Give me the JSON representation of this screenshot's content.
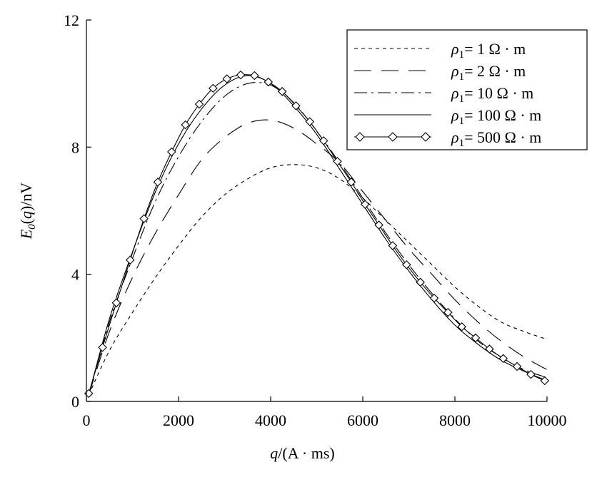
{
  "chart_data": {
    "type": "line",
    "title": "",
    "xlabel": "q/(A · ms)",
    "ylabel": "E0(q)/nV",
    "xlim": [
      0,
      10000
    ],
    "ylim": [
      0,
      12
    ],
    "xticks": [
      0,
      2000,
      4000,
      6000,
      8000,
      10000
    ],
    "yticks": [
      0,
      4,
      8,
      12
    ],
    "legend_position": "top-right",
    "grid": false,
    "series": [
      {
        "name": "ρ1= 1 Ω · m",
        "style": "short-dash",
        "marker": "none",
        "x": [
          50,
          500,
          1000,
          1500,
          2000,
          2500,
          3000,
          3500,
          4000,
          4500,
          5000,
          5500,
          6000,
          6500,
          7000,
          7500,
          8000,
          8500,
          9000,
          9500,
          10000
        ],
        "y": [
          0.2,
          1.6,
          2.8,
          3.9,
          4.9,
          5.8,
          6.5,
          7.0,
          7.35,
          7.45,
          7.35,
          7.0,
          6.4,
          5.7,
          5.0,
          4.3,
          3.6,
          3.0,
          2.5,
          2.2,
          1.95
        ]
      },
      {
        "name": "ρ1= 2 Ω · m",
        "style": "long-dash",
        "marker": "none",
        "x": [
          50,
          500,
          1000,
          1500,
          2000,
          2500,
          3000,
          3500,
          4000,
          4500,
          5000,
          5500,
          6000,
          6500,
          7000,
          7500,
          8000,
          8500,
          9000,
          9500,
          10000
        ],
        "y": [
          0.2,
          2.2,
          3.9,
          5.3,
          6.5,
          7.6,
          8.3,
          8.75,
          8.85,
          8.6,
          8.1,
          7.5,
          6.6,
          5.7,
          4.8,
          4.0,
          3.2,
          2.5,
          1.9,
          1.4,
          1.0
        ]
      },
      {
        "name": "ρ1= 10 Ω · m",
        "style": "dash-dot",
        "marker": "none",
        "x": [
          50,
          500,
          1000,
          1500,
          2000,
          2500,
          3000,
          3500,
          4000,
          4500,
          5000,
          5500,
          6000,
          6500,
          7000,
          7500,
          8000,
          8500,
          9000,
          9500,
          10000
        ],
        "y": [
          0.2,
          2.5,
          4.5,
          6.3,
          7.7,
          8.8,
          9.6,
          10.0,
          9.95,
          9.4,
          8.5,
          7.5,
          6.4,
          5.3,
          4.3,
          3.4,
          2.6,
          1.9,
          1.4,
          1.0,
          0.75
        ]
      },
      {
        "name": "ρ1= 100 Ω · m",
        "style": "solid",
        "marker": "none",
        "x": [
          50,
          500,
          1000,
          1500,
          2000,
          2500,
          3000,
          3500,
          4000,
          4500,
          5000,
          5500,
          6000,
          6500,
          7000,
          7500,
          8000,
          8500,
          9000,
          9500,
          10000
        ],
        "y": [
          0.2,
          2.6,
          4.7,
          6.6,
          8.1,
          9.2,
          9.95,
          10.25,
          10.0,
          9.3,
          8.4,
          7.3,
          6.2,
          5.1,
          4.1,
          3.2,
          2.4,
          1.8,
          1.3,
          0.95,
          0.65
        ]
      },
      {
        "name": "ρ1= 500 Ω · m",
        "style": "solid",
        "marker": "diamond",
        "x": [
          50,
          350,
          650,
          950,
          1250,
          1550,
          1850,
          2150,
          2450,
          2750,
          3050,
          3350,
          3650,
          3950,
          4250,
          4550,
          4850,
          5150,
          5450,
          5750,
          6050,
          6350,
          6650,
          6950,
          7250,
          7550,
          7850,
          8150,
          8450,
          8750,
          9050,
          9350,
          9650,
          9950
        ],
        "y": [
          0.25,
          1.7,
          3.1,
          4.45,
          5.75,
          6.9,
          7.85,
          8.7,
          9.35,
          9.85,
          10.15,
          10.27,
          10.25,
          10.05,
          9.75,
          9.3,
          8.8,
          8.2,
          7.55,
          6.9,
          6.2,
          5.55,
          4.9,
          4.3,
          3.75,
          3.25,
          2.8,
          2.35,
          2.0,
          1.65,
          1.35,
          1.1,
          0.85,
          0.65
        ]
      }
    ]
  }
}
